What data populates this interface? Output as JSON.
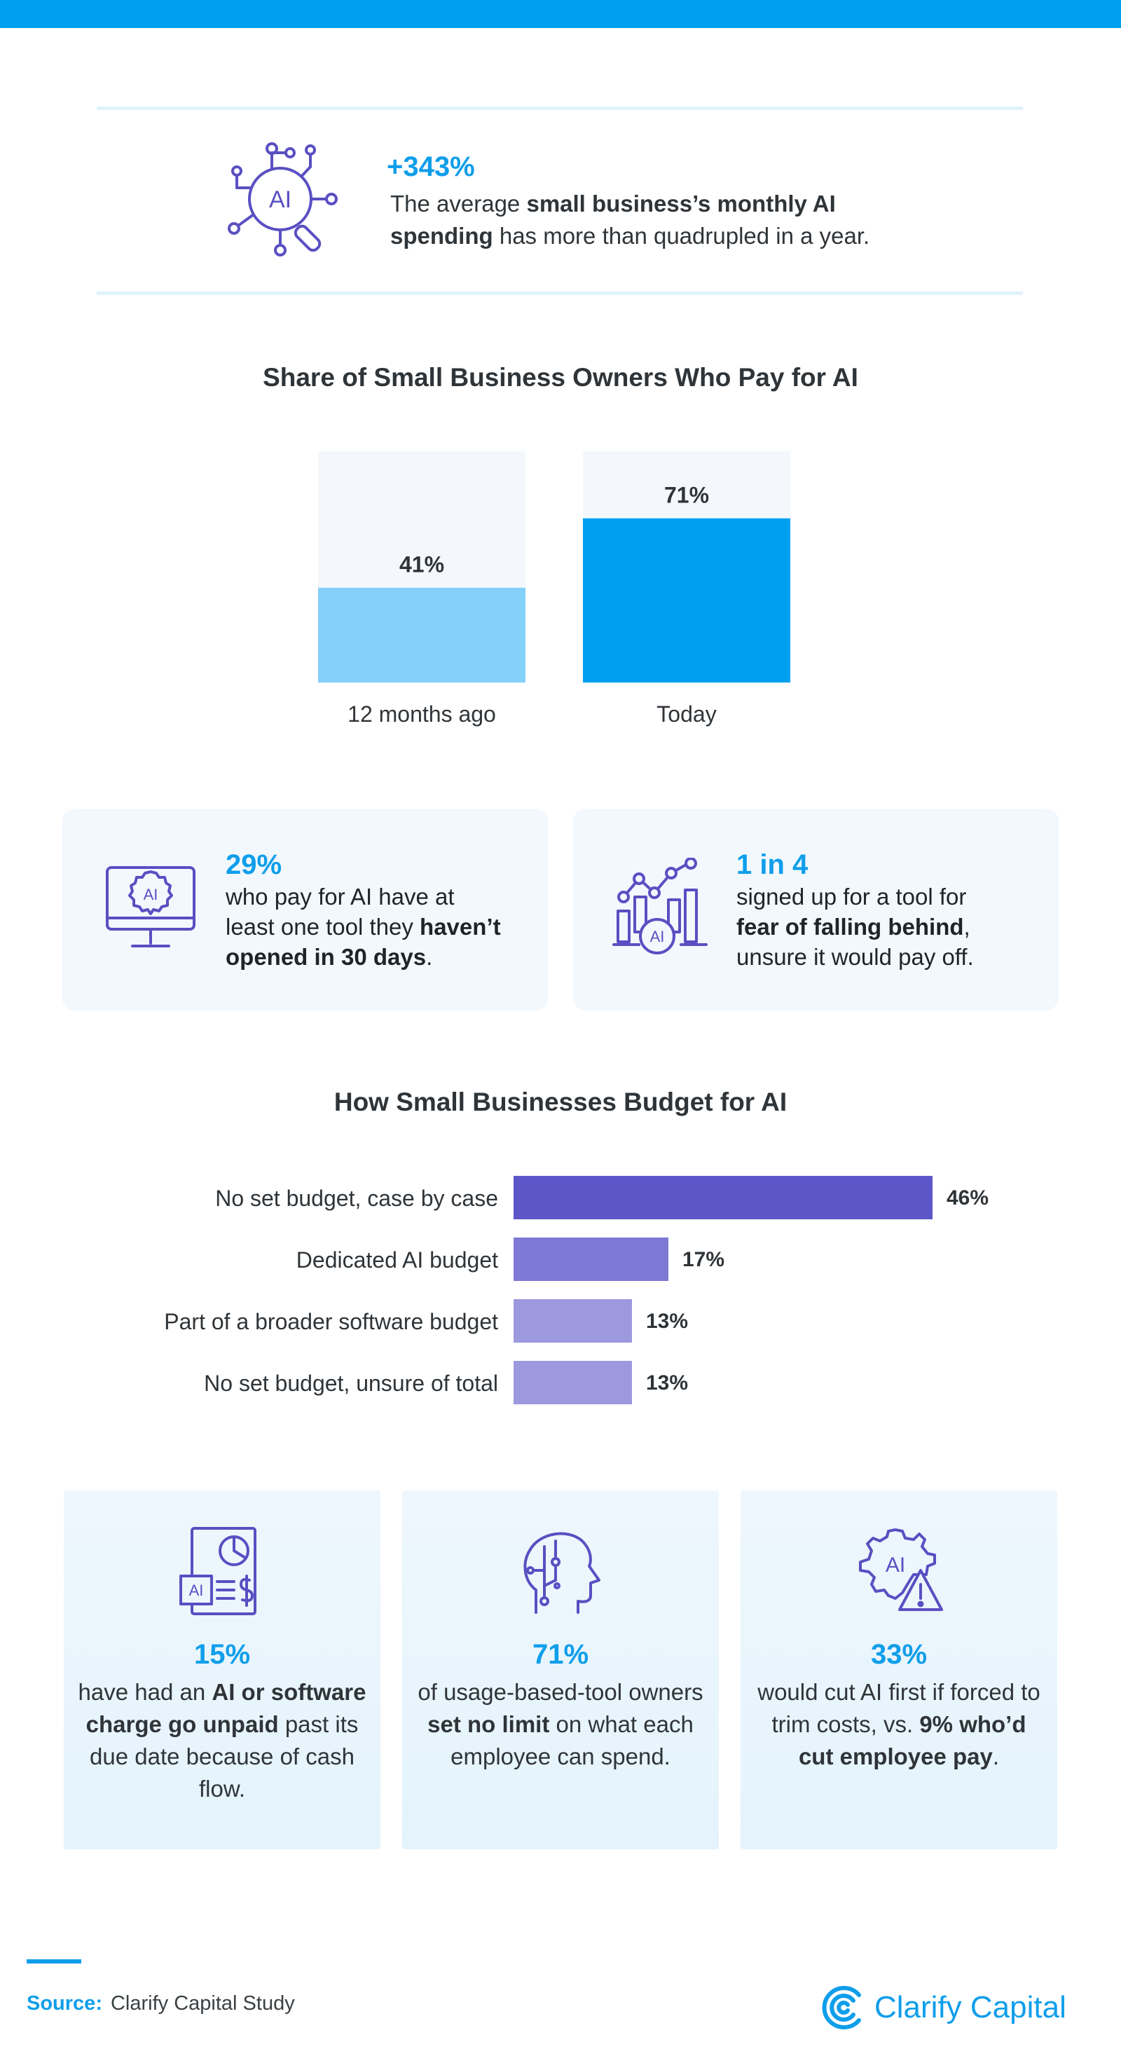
{
  "hero": {
    "stat": "+343%",
    "text_1": "The average ",
    "text_bold": "small business’s monthly AI spending",
    "text_2": " has more than quadrupled in a year."
  },
  "chart_data": [
    {
      "type": "bar",
      "title": "Share of Small Business Owners Who Pay for AI",
      "categories": [
        "12 months ago",
        "Today"
      ],
      "values": [
        41,
        71
      ],
      "value_labels": [
        "41%",
        "71%"
      ],
      "ylim": [
        0,
        100
      ],
      "colors": [
        "#84d0fa",
        "#009ff0"
      ],
      "track_color": "#f4f8fc"
    },
    {
      "type": "bar",
      "orientation": "horizontal",
      "title": "How Small Businesses Budget for AI",
      "categories": [
        "No set budget, case by case",
        "Dedicated AI budget",
        "Part of a broader software budget",
        "No set budget, unsure of total"
      ],
      "values": [
        46,
        17,
        13,
        13
      ],
      "value_labels": [
        "46%",
        "17%",
        "13%",
        "13%"
      ],
      "colors": [
        "#5d56c8",
        "#7f79d6",
        "#9d99de",
        "#9d99de"
      ]
    }
  ],
  "cards": [
    {
      "icon": "ai-monitor-gear-icon",
      "stat": "29%",
      "line_1": "who pay for AI have at",
      "line_2a": "least one tool they ",
      "line_2b": "haven’t",
      "line_3a": "opened in 30 days",
      "line_3b": "."
    },
    {
      "icon": "ai-growth-chart-icon",
      "stat": "1 in 4",
      "line_1": "signed up for a tool for",
      "line_2a": "fear of falling behind",
      "line_2b": ",",
      "line_3": "unsure it would pay off."
    }
  ],
  "bottom_cards": [
    {
      "icon": "ai-invoice-icon",
      "stat": "15%",
      "pre": "have had an ",
      "bold": "AI or software charge go unpaid",
      "post": " past its due date because of cash flow."
    },
    {
      "icon": "ai-head-circuit-icon",
      "stat": "71%",
      "pre": "of usage-based-tool owners ",
      "bold": "set no limit",
      "post": " on what each employee can spend."
    },
    {
      "icon": "ai-gear-warning-icon",
      "stat": "33%",
      "pre": "would cut AI first if forced to trim costs, vs. ",
      "bold": "9% who’d cut employee pay",
      "post": "."
    }
  ],
  "source": {
    "label": "Source:",
    "text": "Clarify Capital Study"
  },
  "brand": {
    "name": "Clarify Capital",
    "color": "#0f9eea"
  },
  "icon_labels": {
    "ai": "AI"
  }
}
